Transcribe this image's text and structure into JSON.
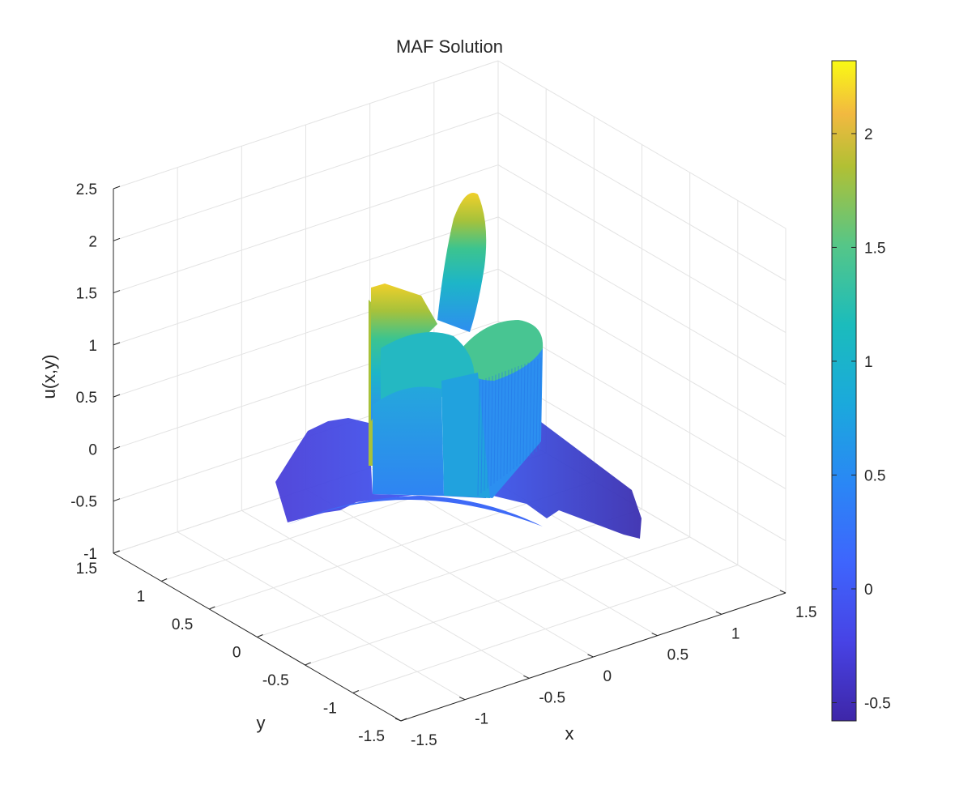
{
  "chart_data": {
    "type": "surface",
    "title": "MAF Solution",
    "xlabel": "x",
    "ylabel": "y",
    "zlabel": "u(x,y)",
    "x_ticks": [
      "-1.5",
      "-1",
      "-0.5",
      "0",
      "0.5",
      "1",
      "1.5"
    ],
    "y_ticks": [
      "-1.5",
      "-1",
      "-0.5",
      "0",
      "0.5",
      "1",
      "1.5"
    ],
    "z_ticks": [
      "-1",
      "-0.5",
      "0",
      "0.5",
      "1",
      "1.5",
      "2",
      "2.5"
    ],
    "xlim": [
      -1.5,
      1.5
    ],
    "ylim": [
      -1.5,
      1.5
    ],
    "zlim": [
      -1,
      2.5
    ],
    "grid": true,
    "colormap": "parula",
    "colorbar": {
      "range": [
        -0.58,
        2.32
      ],
      "ticks": [
        "-0.5",
        "0",
        "0.5",
        "1",
        "1.5",
        "2"
      ],
      "tick_values": [
        -0.5,
        0,
        0.5,
        1,
        1.5,
        2
      ]
    },
    "surface_notes": {
      "domain": "five-petal star-shaped region",
      "peak_value": 2.3,
      "min_value": -0.58
    }
  }
}
